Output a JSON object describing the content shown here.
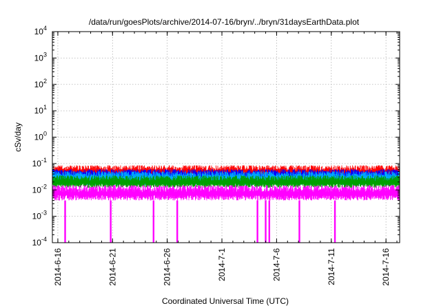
{
  "chart_data": {
    "type": "line",
    "title": "/data/run/goesPlots/archive/2014-07-16/bryn/../bryn/31daysEarthData.plot",
    "xlabel": "Coordinated Universal Time (UTC)",
    "ylabel": "cSv/day",
    "yscale": "log",
    "ylim": [
      0.0001,
      10000
    ],
    "xlim": [
      "2014-06-15T12:00",
      "2014-07-17T06:00"
    ],
    "grid": true,
    "legend": "none",
    "x_ticks": [
      "2014-6-16",
      "2014-6-21",
      "2014-6-26",
      "2014-7-1",
      "2014-7-6",
      "2014-7-11",
      "2014-7-16"
    ],
    "y_ticks": [
      {
        "value": 0.0001,
        "base": "10",
        "exp": "-4"
      },
      {
        "value": 0.001,
        "base": "10",
        "exp": "-3"
      },
      {
        "value": 0.01,
        "base": "10",
        "exp": "-2"
      },
      {
        "value": 0.1,
        "base": "10",
        "exp": "-1"
      },
      {
        "value": 1,
        "base": "10",
        "exp": "0"
      },
      {
        "value": 10,
        "base": "10",
        "exp": "1"
      },
      {
        "value": 100,
        "base": "10",
        "exp": "2"
      },
      {
        "value": 1000,
        "base": "10",
        "exp": "3"
      },
      {
        "value": 10000,
        "base": "10",
        "exp": "4"
      }
    ],
    "series": [
      {
        "color": "#ff0000",
        "band": [
          0.03,
          0.085
        ]
      },
      {
        "color": "#0000ff",
        "band": [
          0.02,
          0.06
        ]
      },
      {
        "color": "#00aaff",
        "band": [
          0.015,
          0.05
        ]
      },
      {
        "color": "#00a000",
        "band": [
          0.012,
          0.035
        ]
      },
      {
        "color": "#ff00ff",
        "band": [
          0.004,
          0.015
        ]
      }
    ],
    "dropouts": {
      "color": "#ff00ff",
      "value": 0.0001,
      "dates": [
        "2014-06-16T16:00",
        "2014-06-20T20:00",
        "2014-06-24T18:00",
        "2014-06-26T22:00",
        "2014-07-04T06:00",
        "2014-07-05T00:00",
        "2014-07-05T08:00",
        "2014-07-08T02:00",
        "2014-07-11T08:00"
      ]
    }
  }
}
